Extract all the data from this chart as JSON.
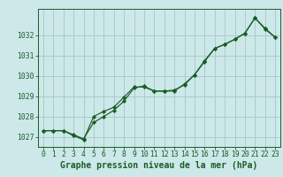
{
  "xlabel": "Graphe pression niveau de la mer (hPa)",
  "background_color": "#cce8e8",
  "grid_color": "#aacccc",
  "line_color": "#1a5c28",
  "hours": [
    0,
    1,
    2,
    3,
    4,
    5,
    6,
    7,
    8,
    9,
    10,
    11,
    12,
    13,
    14,
    15,
    16,
    17,
    18,
    19,
    20,
    21,
    22,
    23
  ],
  "series1": [
    1027.3,
    1027.3,
    1027.3,
    1027.1,
    1026.9,
    1027.7,
    1028.0,
    1028.3,
    1028.75,
    1029.4,
    1029.5,
    1029.25,
    1029.25,
    1029.25,
    1029.6,
    1030.05,
    1030.75,
    1031.35,
    1031.55,
    1031.8,
    1032.1,
    1032.85,
    1032.3,
    1031.9
  ],
  "series2": [
    1027.3,
    1027.3,
    1027.3,
    1027.05,
    1026.85,
    1028.0,
    1028.25,
    1028.45,
    1028.95,
    1029.45,
    1029.45,
    1029.25,
    1029.25,
    1029.3,
    1029.55,
    1030.05,
    1030.7,
    1031.35,
    1031.55,
    1031.8,
    1032.1,
    1032.85,
    1032.35,
    1031.9
  ],
  "ylim_min": 1026.5,
  "ylim_max": 1033.3,
  "yticks": [
    1027,
    1028,
    1029,
    1030,
    1031,
    1032
  ],
  "xticks": [
    0,
    1,
    2,
    3,
    4,
    5,
    6,
    7,
    8,
    9,
    10,
    11,
    12,
    13,
    14,
    15,
    16,
    17,
    18,
    19,
    20,
    21,
    22,
    23
  ],
  "tick_fontsize": 5.8,
  "xlabel_fontsize": 7.0
}
